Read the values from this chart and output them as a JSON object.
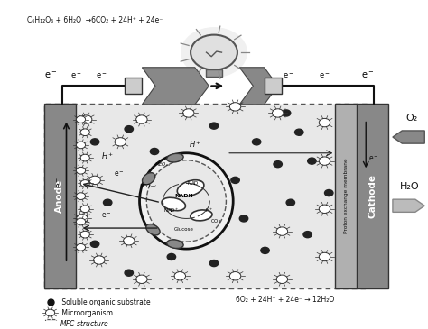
{
  "bg_color": "#ffffff",
  "light_gray": "#c8c8c8",
  "medium_gray": "#a0a0a0",
  "dark_gray": "#606060",
  "top_eq": "C₆H₁₂O₆ + 6H₂O  →6CO₂ + 24H⁺ + 24e⁻",
  "bottom_eq": "6O₂ + 24H⁺ + 24e⁻ → 12H₂O",
  "legend1": " Soluble organic substrate",
  "legend2": " Microorganism",
  "legend3": "MFC structure",
  "anode_label": "Anode",
  "cathode_label": "Cathode",
  "pem_label": "Proton exchange membrane",
  "o2_label": "O₂",
  "h2o_label": "H₂O"
}
